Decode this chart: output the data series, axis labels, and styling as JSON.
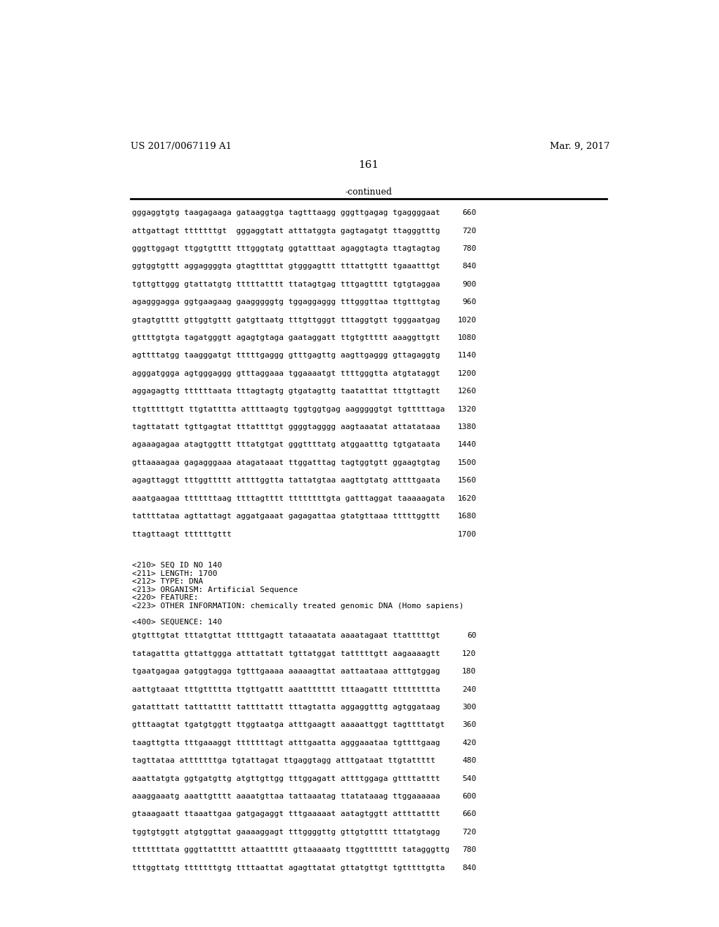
{
  "header_left": "US 2017/0067119 A1",
  "header_right": "Mar. 9, 2017",
  "page_number": "161",
  "continued_text": "-continued",
  "background_color": "#ffffff",
  "text_color": "#000000",
  "sequence_lines_1": [
    {
      "seq": "gggaggtgtg taagagaaga gataaggtga tagtttaagg gggttgagag tgaggggaat",
      "num": "660"
    },
    {
      "seq": "attgattagt tttttttgt  gggaggtatt atttatggta gagtagatgt ttagggtttg",
      "num": "720"
    },
    {
      "seq": "gggttggagt ttggtgtttt tttgggtatg ggtatttaat agaggtagta ttagtagtag",
      "num": "780"
    },
    {
      "seq": "ggtggtgttt aggaggggta gtagttttat gtgggagttt tttattgttt tgaaatttgt",
      "num": "840"
    },
    {
      "seq": "tgttgttggg gtattatgtg tttttatttt ttatagtgag tttgagtttt tgtgtaggaa",
      "num": "900"
    },
    {
      "seq": "agagggagga ggtgaagaag gaagggggtg tggaggaggg tttgggttaa ttgtttgtag",
      "num": "960"
    },
    {
      "seq": "gtagtgtttt gttggtgttt gatgttaatg tttgttgggt tttaggtgtt tgggaatgag",
      "num": "1020"
    },
    {
      "seq": "gttttgtgta tagatgggtt agagtgtaga gaataggatt ttgtgttttt aaaggttgtt",
      "num": "1080"
    },
    {
      "seq": "agttttatgg taagggatgt tttttgaggg gtttgagttg aagttgaggg gttagaggtg",
      "num": "1140"
    },
    {
      "seq": "agggatggga agtgggaggg gtttaggaaa tggaaaatgt ttttgggtta atgtataggt",
      "num": "1200"
    },
    {
      "seq": "aggagagttg ttttttaata tttagtagtg gtgatagttg taatatttat tttgttagtt",
      "num": "1260"
    },
    {
      "seq": "ttgtttttgtt ttgtatttta attttaagtg tggtggtgag aagggggtgt tgtttttaga",
      "num": "1320"
    },
    {
      "seq": "tagttatatt tgttgagtat tttattttgt ggggtagggg aagtaaatat attatataaa",
      "num": "1380"
    },
    {
      "seq": "agaaagagaa atagtggttt tttatgtgat gggttttatg atggaatttg tgtgataata",
      "num": "1440"
    },
    {
      "seq": "gttaaaagaa gagagggaaa atagataaat ttggatttag tagtggtgtt ggaagtgtag",
      "num": "1500"
    },
    {
      "seq": "agagttaggt tttggttttt attttggtta tattatgtaa aagttgtatg attttgaata",
      "num": "1560"
    },
    {
      "seq": "aaatgaagaa tttttttaag ttttagtttt ttttttttgta gatttaggat taaaaagata",
      "num": "1620"
    },
    {
      "seq": "tattttataa agttattagt aggatgaaat gagagattaa gtatgttaaa tttttggttt",
      "num": "1680"
    },
    {
      "seq": "ttagttaagt ttttttgttt",
      "num": "1700"
    }
  ],
  "meta_lines": [
    "<210> SEQ ID NO 140",
    "<211> LENGTH: 1700",
    "<212> TYPE: DNA",
    "<213> ORGANISM: Artificial Sequence",
    "<220> FEATURE:",
    "<223> OTHER INFORMATION: chemically treated genomic DNA (Homo sapiens)"
  ],
  "seq400_label": "<400> SEQUENCE: 140",
  "sequence_lines_2": [
    {
      "seq": "gtgtttgtat tttatgttat tttttgagtt tataaatata aaaatagaat ttatttttgt",
      "num": "60"
    },
    {
      "seq": "tatagattta gttattggga atttattatt tgttatggat tatttttgtt aagaaaagtt",
      "num": "120"
    },
    {
      "seq": "tgaatgagaa gatggtagga tgtttgaaaa aaaaagttat aattaataaa atttgtggag",
      "num": "180"
    },
    {
      "seq": "aattgtaaat tttgttttta ttgttgattt aaattttttt tttaagattt ttttttttta",
      "num": "240"
    },
    {
      "seq": "gatatttatt tatttatttt tattttattt tttagtatta aggaggtttg agtggataag",
      "num": "300"
    },
    {
      "seq": "gtttaagtat tgatgtggtt ttggtaatga atttgaagtt aaaaattggt tagttttatgt",
      "num": "360"
    },
    {
      "seq": "taagttgtta tttgaaaggt tttttttagt atttgaatta agggaaataa tgttttgaag",
      "num": "420"
    },
    {
      "seq": "tagttataa atttttttga tgtattagat ttgaggtagg atttgataat ttgtattttt",
      "num": "480"
    },
    {
      "seq": "aaattatgta ggtgatgttg atgttgttgg tttggagatt attttggaga gttttatttt",
      "num": "540"
    },
    {
      "seq": "aaaggaaatg aaattgtttt aaaatgttaa tattaaatag ttatataaag ttggaaaaaa",
      "num": "600"
    },
    {
      "seq": "gtaaagaatt ttaaattgaa gatgagaggt tttgaaaaat aatagtggtt attttatttt",
      "num": "660"
    },
    {
      "seq": "tggtgtggtt atgtggttat gaaaaggagt tttggggttg gttgtgtttt tttatgtagg",
      "num": "720"
    },
    {
      "seq": "tttttttata gggttattttt attaattttt gttaaaaatg ttggttttttt tatagggttg",
      "num": "780"
    },
    {
      "seq": "tttggttatg tttttttgtg ttttaattat agagttatat gttatgttgt tgtttttgtta",
      "num": "840"
    }
  ]
}
